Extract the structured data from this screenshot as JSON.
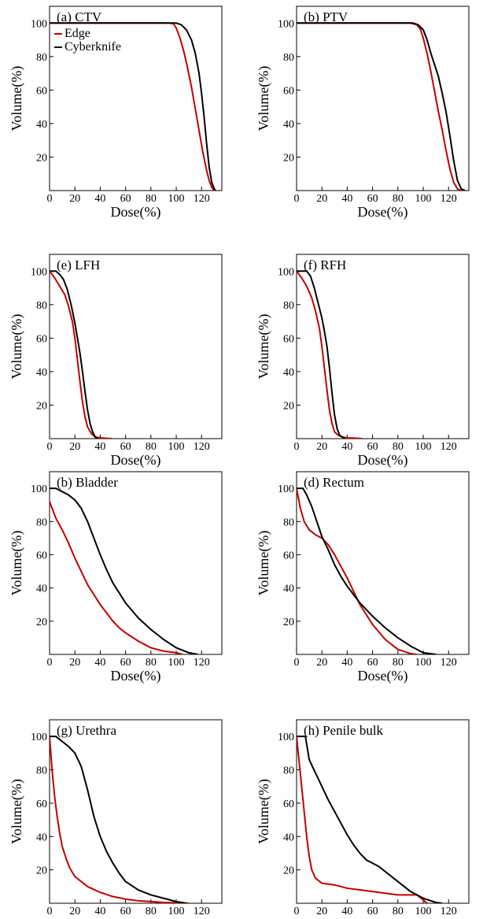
{
  "figure": {
    "colors": {
      "Edge": "#c00000",
      "Cyberknife": "#000000"
    },
    "legend": {
      "location": "top-left of panel (a)",
      "entries": [
        "Edge",
        "Cyberknife"
      ]
    }
  },
  "chart_data": [
    {
      "type": "line",
      "title": "(a) CTV",
      "xlabel": "Dose(%)",
      "ylabel": "Volume(%)",
      "xlim": [
        0,
        136
      ],
      "ylim": [
        0,
        110
      ],
      "xticks": [
        0,
        20,
        40,
        60,
        80,
        100,
        120
      ],
      "yticks": [
        20,
        40,
        60,
        80,
        100
      ],
      "legend": true,
      "series": [
        {
          "name": "Edge",
          "color": "#c00000",
          "x": [
            0,
            95,
            98,
            100,
            103,
            106,
            109,
            112,
            115,
            118,
            121,
            124,
            126,
            128,
            130
          ],
          "y": [
            100,
            100,
            99.5,
            97,
            91,
            83,
            73,
            62,
            49,
            36,
            23,
            12,
            6,
            2,
            0
          ]
        },
        {
          "name": "Cyberknife",
          "color": "#000000",
          "x": [
            0,
            100,
            104,
            108,
            112,
            115,
            118,
            120,
            122,
            124,
            126,
            128,
            130,
            131
          ],
          "y": [
            100,
            100,
            99,
            96,
            90,
            82,
            70,
            58,
            44,
            28,
            14,
            5,
            1,
            0
          ]
        }
      ]
    },
    {
      "type": "line",
      "title": "(b) PTV",
      "xlabel": "Dose(%)",
      "ylabel": "Volume(%)",
      "xlim": [
        0,
        136
      ],
      "ylim": [
        0,
        110
      ],
      "xticks": [
        0,
        20,
        40,
        60,
        80,
        100,
        120
      ],
      "yticks": [
        20,
        40,
        60,
        80,
        100
      ],
      "series": [
        {
          "name": "Edge",
          "color": "#c00000",
          "x": [
            0,
            90,
            95,
            98,
            100,
            103,
            106,
            109,
            112,
            115,
            118,
            121,
            124,
            127,
            130
          ],
          "y": [
            100,
            100,
            99,
            96,
            91,
            82,
            71,
            59,
            47,
            36,
            24,
            13,
            5,
            1,
            0
          ]
        },
        {
          "name": "Cyberknife",
          "color": "#000000",
          "x": [
            0,
            92,
            96,
            100,
            103,
            106,
            109,
            112,
            115,
            118,
            121,
            124,
            127,
            130,
            133
          ],
          "y": [
            100,
            100,
            99,
            96,
            90,
            82,
            75,
            68,
            58,
            47,
            33,
            18,
            6,
            1,
            0
          ]
        }
      ]
    },
    {
      "type": "line",
      "title": "(e) LFH",
      "xlabel": "Dose(%)",
      "ylabel": "Volume(%)",
      "xlim": [
        0,
        136
      ],
      "ylim": [
        0,
        110
      ],
      "xticks": [
        0,
        20,
        40,
        60,
        80,
        100,
        120
      ],
      "yticks": [
        20,
        40,
        60,
        80,
        100
      ],
      "series": [
        {
          "name": "Edge",
          "color": "#c00000",
          "x": [
            0,
            4,
            8,
            12,
            15,
            18,
            20,
            22,
            24,
            26,
            28,
            30,
            33,
            36,
            40,
            45,
            49
          ],
          "y": [
            100,
            96,
            91,
            86,
            79,
            70,
            60,
            47,
            34,
            22,
            13,
            7,
            3,
            1,
            0.5,
            0.2,
            0
          ]
        },
        {
          "name": "Cyberknife",
          "color": "#000000",
          "x": [
            0,
            5,
            8,
            11,
            14,
            17,
            20,
            22,
            24,
            26,
            28,
            30,
            32,
            34,
            36,
            38
          ],
          "y": [
            100,
            100,
            98,
            95,
            89,
            80,
            69,
            60,
            51,
            40,
            28,
            17,
            9,
            4,
            1,
            0
          ]
        }
      ]
    },
    {
      "type": "line",
      "title": "(f) RFH",
      "xlabel": "Dose(%)",
      "ylabel": "Volume(%)",
      "xlim": [
        0,
        136
      ],
      "ylim": [
        0,
        110
      ],
      "xticks": [
        0,
        20,
        40,
        60,
        80,
        100,
        120
      ],
      "yticks": [
        20,
        40,
        60,
        80,
        100
      ],
      "series": [
        {
          "name": "Edge",
          "color": "#c00000",
          "x": [
            0,
            4,
            8,
            12,
            15,
            18,
            20,
            22,
            24,
            26,
            28,
            30,
            33,
            36,
            40,
            46,
            52
          ],
          "y": [
            100,
            96,
            91,
            84,
            76,
            66,
            55,
            42,
            29,
            17,
            9,
            4,
            2,
            1,
            0.5,
            0.3,
            0
          ]
        },
        {
          "name": "Cyberknife",
          "color": "#000000",
          "x": [
            0,
            8,
            11,
            14,
            17,
            20,
            22,
            24,
            26,
            28,
            30,
            32,
            34,
            36,
            38
          ],
          "y": [
            100,
            100,
            97,
            90,
            81,
            72,
            64,
            55,
            42,
            27,
            14,
            6,
            2,
            1,
            0
          ]
        }
      ]
    },
    {
      "type": "line",
      "title": "(b) Bladder",
      "xlabel": "Dose(%)",
      "ylabel": "Volume(%)",
      "xlim": [
        0,
        136
      ],
      "ylim": [
        0,
        110
      ],
      "xticks": [
        0,
        20,
        40,
        60,
        80,
        100,
        120
      ],
      "yticks": [
        20,
        40,
        60,
        80,
        100
      ],
      "series": [
        {
          "name": "Edge",
          "color": "#c00000",
          "x": [
            0,
            5,
            10,
            15,
            20,
            25,
            30,
            35,
            40,
            45,
            50,
            55,
            60,
            70,
            80,
            90,
            100,
            105
          ],
          "y": [
            92,
            82,
            75,
            67,
            58,
            50,
            42,
            36,
            30,
            25,
            20,
            16,
            13,
            8,
            4,
            2,
            1,
            0
          ]
        },
        {
          "name": "Cyberknife",
          "color": "#000000",
          "x": [
            0,
            5,
            10,
            15,
            20,
            25,
            30,
            35,
            40,
            45,
            50,
            55,
            60,
            70,
            80,
            90,
            100,
            110,
            117
          ],
          "y": [
            100,
            100,
            98,
            96,
            93,
            88,
            80,
            70,
            60,
            51,
            43,
            37,
            31,
            22,
            15,
            9,
            4,
            1,
            0
          ]
        }
      ]
    },
    {
      "type": "line",
      "title": "(d) Rectum",
      "xlabel": "Dose(%)",
      "ylabel": "Volume(%)",
      "xlim": [
        0,
        136
      ],
      "ylim": [
        0,
        110
      ],
      "xticks": [
        0,
        20,
        40,
        60,
        80,
        100,
        120
      ],
      "yticks": [
        20,
        40,
        60,
        80,
        100
      ],
      "series": [
        {
          "name": "Edge",
          "color": "#c00000",
          "x": [
            0,
            3,
            6,
            10,
            15,
            20,
            25,
            30,
            35,
            40,
            45,
            50,
            55,
            60,
            70,
            80,
            90,
            95
          ],
          "y": [
            100,
            88,
            80,
            75,
            72,
            70,
            66,
            60,
            53,
            46,
            38,
            30,
            24,
            18,
            9,
            3,
            0.5,
            0
          ]
        },
        {
          "name": "Cyberknife",
          "color": "#000000",
          "x": [
            0,
            5,
            8,
            12,
            16,
            20,
            25,
            30,
            35,
            40,
            45,
            50,
            55,
            60,
            70,
            80,
            90,
            100,
            110
          ],
          "y": [
            100,
            100,
            96,
            89,
            80,
            71,
            63,
            54,
            47,
            41,
            36,
            31,
            27,
            23,
            16,
            10,
            5,
            1,
            0
          ]
        }
      ]
    },
    {
      "type": "line",
      "title": "(g) Urethra",
      "xlabel": "Dose(%)",
      "ylabel": "Volume(%)",
      "xlim": [
        0,
        136
      ],
      "ylim": [
        0,
        110
      ],
      "xticks": [
        0,
        20,
        40,
        60,
        80,
        100,
        120
      ],
      "yticks": [
        20,
        40,
        60,
        80,
        100
      ],
      "series": [
        {
          "name": "Edge",
          "color": "#c00000",
          "x": [
            0,
            2,
            4,
            6,
            8,
            10,
            13,
            16,
            20,
            25,
            30,
            40,
            50,
            60,
            70,
            80,
            90,
            100,
            110
          ],
          "y": [
            100,
            80,
            64,
            52,
            42,
            34,
            27,
            21,
            16,
            13,
            10,
            6.5,
            4,
            2.5,
            1.5,
            1,
            0.5,
            0.3,
            0
          ]
        },
        {
          "name": "Cyberknife",
          "color": "#000000",
          "x": [
            0,
            5,
            10,
            15,
            20,
            25,
            30,
            35,
            40,
            45,
            50,
            55,
            60,
            70,
            80,
            90,
            100,
            108
          ],
          "y": [
            100,
            100,
            97,
            94,
            90,
            82,
            68,
            52,
            40,
            31,
            24,
            18,
            13,
            8,
            5,
            3,
            1,
            0
          ]
        }
      ]
    },
    {
      "type": "line",
      "title": "(h) Penile bulk",
      "xlabel": "Dose(%)",
      "ylabel": "Volume(%)",
      "xlim": [
        0,
        136
      ],
      "ylim": [
        0,
        110
      ],
      "xticks": [
        0,
        20,
        40,
        60,
        80,
        100,
        120
      ],
      "yticks": [
        20,
        40,
        60,
        80,
        100
      ],
      "series": [
        {
          "name": "Edge",
          "color": "#c00000",
          "x": [
            0,
            2,
            4,
            6,
            8,
            10,
            12,
            15,
            20,
            30,
            40,
            50,
            60,
            70,
            80,
            90,
            95,
            100,
            103
          ],
          "y": [
            100,
            85,
            70,
            55,
            40,
            28,
            20,
            15,
            12,
            11,
            9,
            8,
            7,
            6,
            5,
            5,
            5,
            2,
            0
          ]
        },
        {
          "name": "Cyberknife",
          "color": "#000000",
          "x": [
            0,
            7,
            10,
            15,
            20,
            25,
            30,
            35,
            40,
            45,
            50,
            55,
            60,
            65,
            70,
            80,
            90,
            100,
            110,
            115
          ],
          "y": [
            100,
            100,
            86,
            78,
            70,
            62,
            55,
            48,
            41,
            35,
            30,
            26,
            24,
            22,
            19,
            13,
            7,
            3,
            0.5,
            0
          ]
        }
      ]
    }
  ]
}
